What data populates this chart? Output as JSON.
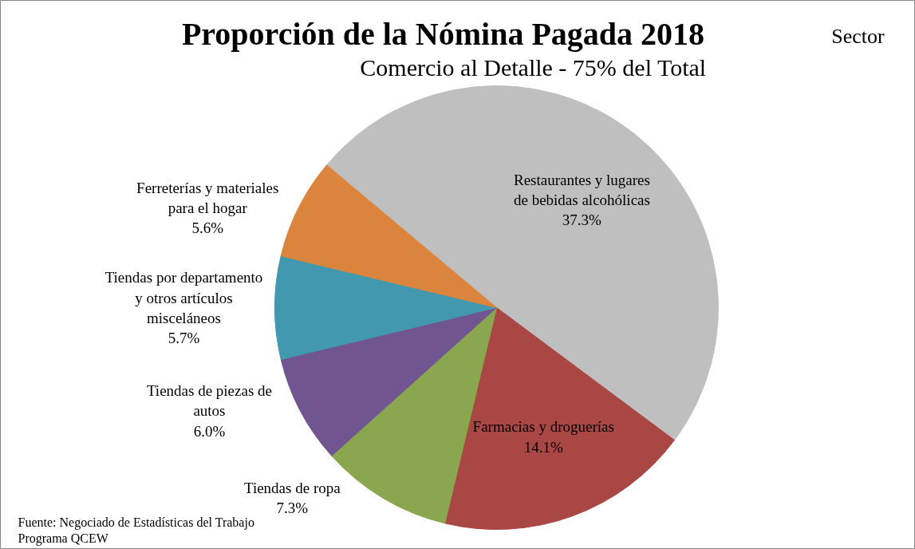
{
  "chart_data": {
    "type": "pie",
    "title": "Proporción de la Nómina Pagada 2018",
    "subtitle": "Comercio al Detalle - 75% del Total",
    "categories": [
      "Restaurantes y lugares de bebidas alcohólicas",
      "Farmacias y droguerías",
      "Tiendas de ropa",
      "Tiendas de piezas de autos",
      "Tiendas por departamento y otros artículos misceláneos",
      "Ferreterías y materiales para el hogar"
    ],
    "values": [
      37.3,
      14.1,
      7.3,
      6.0,
      5.7,
      5.6
    ],
    "value_labels": [
      "37.3%",
      "14.1%",
      "7.3%",
      "6.0%",
      "5.7%",
      "5.6%"
    ],
    "colors": [
      "#bfbfbf",
      "#a94744",
      "#8aa64e",
      "#705590",
      "#4198af",
      "#db843d"
    ],
    "annotations": [
      "Sector",
      "Fuente: Negociado de Estadísticas del Trabajo\nPrograma QCEW"
    ]
  }
}
